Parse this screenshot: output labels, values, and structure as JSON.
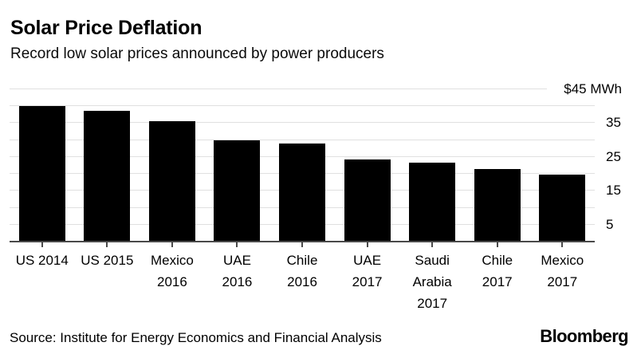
{
  "header": {
    "title": "Solar Price Deflation",
    "subtitle": "Record low solar prices announced by power producers"
  },
  "chart_data": {
    "type": "bar",
    "title": "Solar Price Deflation",
    "subtitle": "Record low solar prices announced by power producers",
    "categories": [
      "US 2014",
      "US 2015",
      "Mexico 2016",
      "UAE 2016",
      "Chile 2016",
      "UAE 2017",
      "Saudi Arabia 2017",
      "Chile 2017",
      "Mexico 2017"
    ],
    "label_lines": [
      [
        "US 2014"
      ],
      [
        "US 2015"
      ],
      [
        "Mexico",
        "2016"
      ],
      [
        "UAE",
        "2016"
      ],
      [
        "Chile",
        "2016"
      ],
      [
        "UAE",
        "2017"
      ],
      [
        "Saudi",
        "Arabia",
        "2017"
      ],
      [
        "Chile",
        "2017"
      ],
      [
        "Mexico",
        "2017"
      ]
    ],
    "values": [
      40,
      38.7,
      35.5,
      29.9,
      29.1,
      24.2,
      23.4,
      21.5,
      19.8
    ],
    "unit": "$/MWh",
    "xlabel": "",
    "ylabel": "",
    "ylim": [
      0,
      45
    ],
    "gridline_values": [
      5,
      10,
      15,
      20,
      25,
      30,
      35,
      40,
      45
    ],
    "y_labels": [
      {
        "value": 45,
        "text": "$45 MWh"
      },
      {
        "value": 35,
        "text": "35"
      },
      {
        "value": 25,
        "text": "25"
      },
      {
        "value": 15,
        "text": "15"
      },
      {
        "value": 5,
        "text": "5"
      }
    ],
    "legend": "none",
    "grid": "horizontal",
    "bar_color": "#000000",
    "gridline_color": "#e0e0e0",
    "baseline_color": "#4a4a4a"
  },
  "footer": {
    "source": "Source: Institute for Energy Economics and Financial Analysis",
    "brand": "Bloomberg"
  }
}
